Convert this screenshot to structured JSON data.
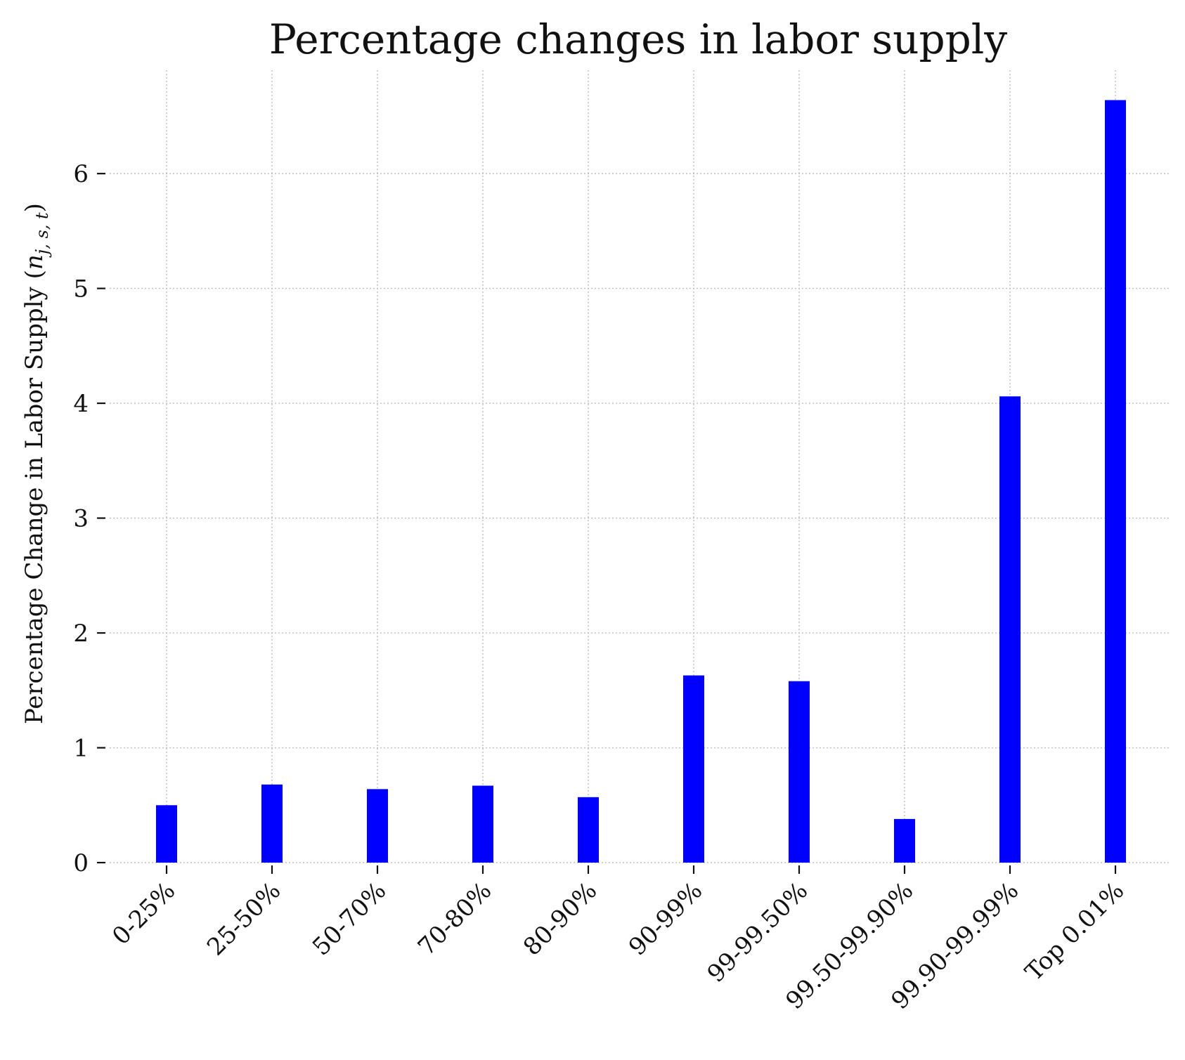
{
  "chart_data": {
    "type": "bar",
    "title": "Percentage changes in labor supply",
    "ylabel_prefix": "Percentage Change in Labor Supply (",
    "ylabel_var": "n",
    "ylabel_subscript": "j, s, t",
    "ylabel_suffix": ")",
    "xlabel": "",
    "categories": [
      "0-25%",
      "25-50%",
      "50-70%",
      "70-80%",
      "80-90%",
      "90-99%",
      "99-99.50%",
      "99.50-99.90%",
      "99.90-99.99%",
      "Top 0.01%"
    ],
    "values": [
      0.5,
      0.68,
      0.64,
      0.67,
      0.57,
      1.63,
      1.58,
      0.38,
      4.06,
      6.64
    ],
    "ylim": [
      0,
      6.9
    ],
    "yticks": [
      0,
      1,
      2,
      3,
      4,
      5,
      6
    ],
    "bar_color": "#0000ff",
    "grid": true,
    "legend": "none"
  }
}
